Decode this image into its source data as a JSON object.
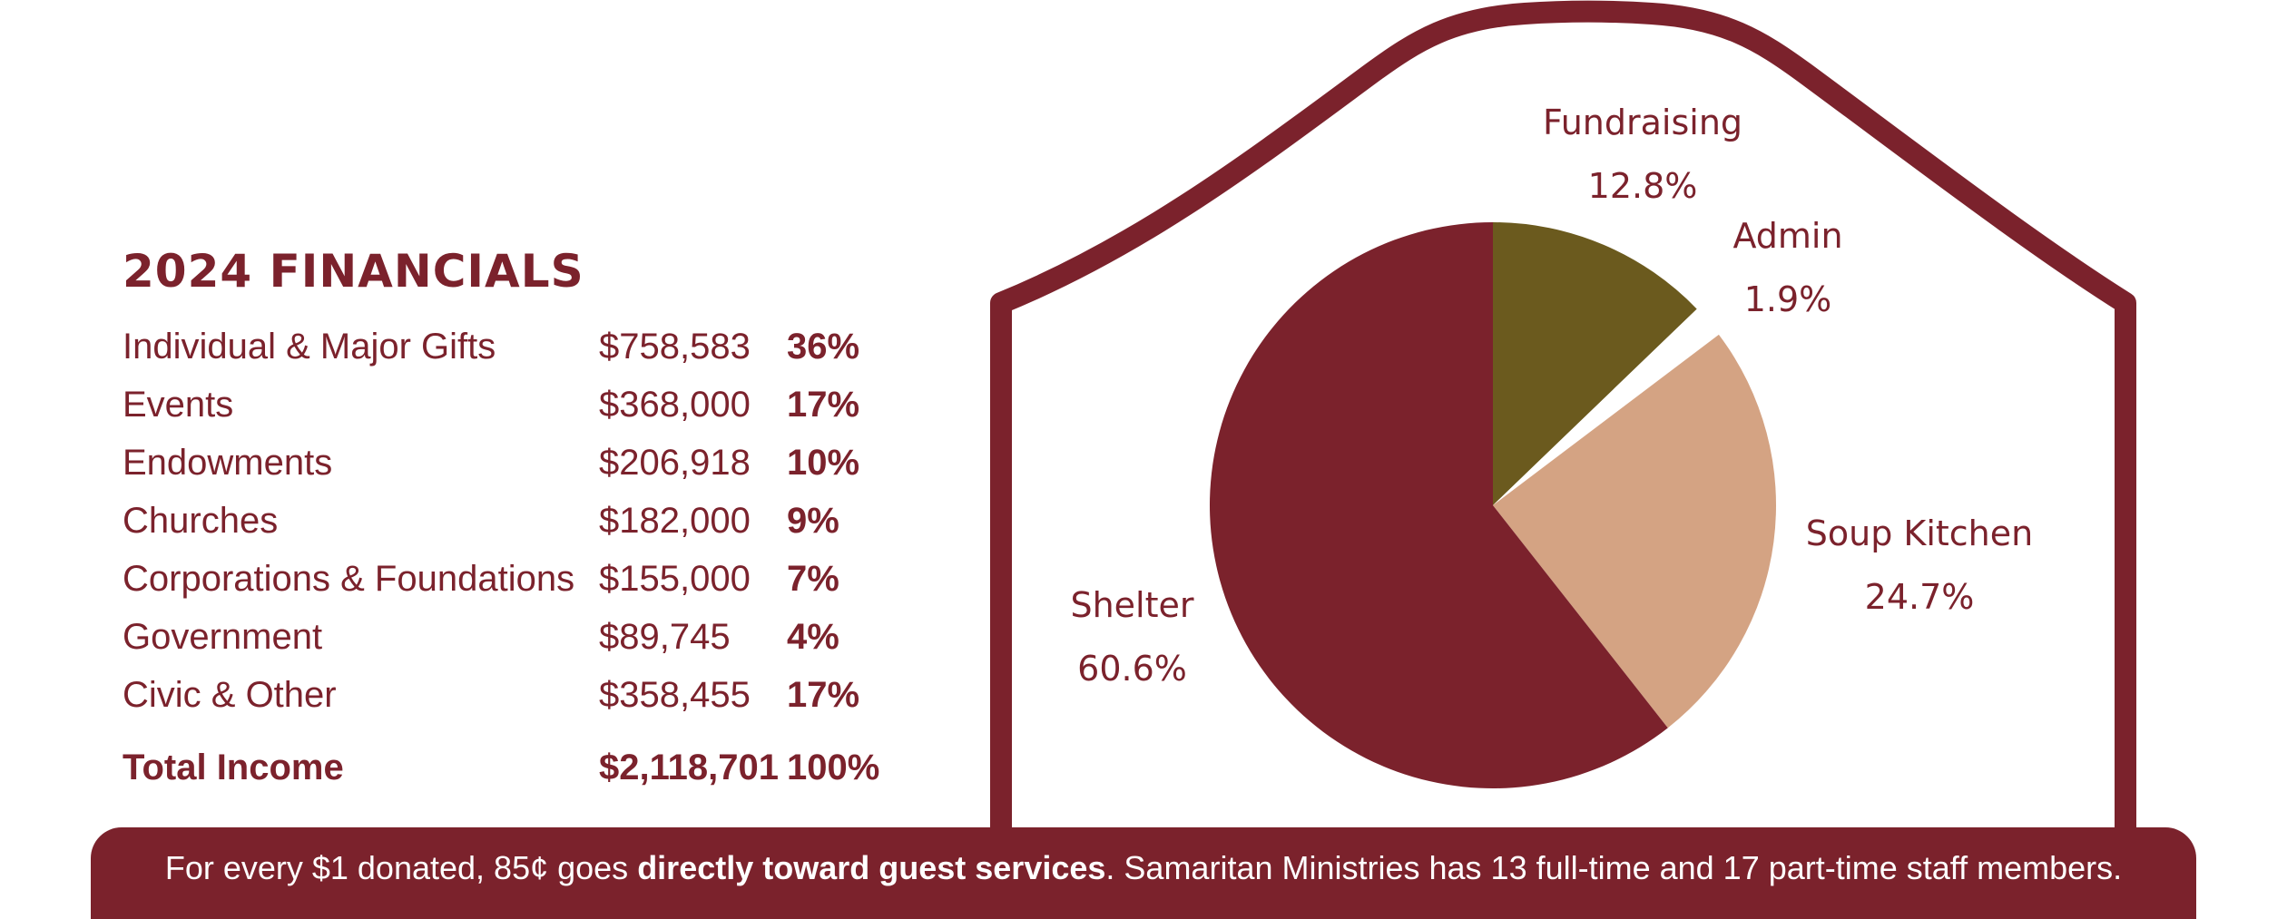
{
  "financials": {
    "title": "2024 FINANCIALS",
    "rows": [
      {
        "category": "Individual & Major Gifts",
        "amount": "$758,583",
        "percent": "36%"
      },
      {
        "category": "Events",
        "amount": "$368,000",
        "percent": "17%"
      },
      {
        "category": "Endowments",
        "amount": "$206,918",
        "percent": "10%"
      },
      {
        "category": "Churches",
        "amount": "$182,000",
        "percent": "9%"
      },
      {
        "category": "Corporations & Foundations",
        "amount": "$155,000",
        "percent": "7%"
      },
      {
        "category": "Government",
        "amount": "$89,745",
        "percent": "4%"
      },
      {
        "category": "Civic & Other",
        "amount": "$358,455",
        "percent": "17%"
      }
    ],
    "total": {
      "category": "Total Income",
      "amount": "$2,118,701",
      "percent": "100%"
    }
  },
  "footer": {
    "text_before": "For every $1 donated, 85¢ goes ",
    "text_bold": "directly toward guest services",
    "text_after": ". Samaritan Ministries has 13 full-time and 17 part-time staff members."
  },
  "colors": {
    "brand": "#7b222c",
    "fundraising": "#6b5a1e",
    "soup_kitchen": "#d4a383",
    "admin": "#ffffff",
    "text_on_brand": "#ffffff"
  },
  "chart_data": {
    "type": "pie",
    "slices": [
      {
        "label": "Fundraising",
        "value": 12.8,
        "display": "12.8%",
        "color": "#6b5a1e"
      },
      {
        "label": "Admin",
        "value": 1.9,
        "display": "1.9%",
        "color": "#ffffff"
      },
      {
        "label": "Soup Kitchen",
        "value": 24.7,
        "display": "24.7%",
        "color": "#d4a383"
      },
      {
        "label": "Shelter",
        "value": 60.6,
        "display": "60.6%",
        "color": "#7b222c"
      }
    ],
    "start": "top",
    "direction": "clockwise"
  }
}
